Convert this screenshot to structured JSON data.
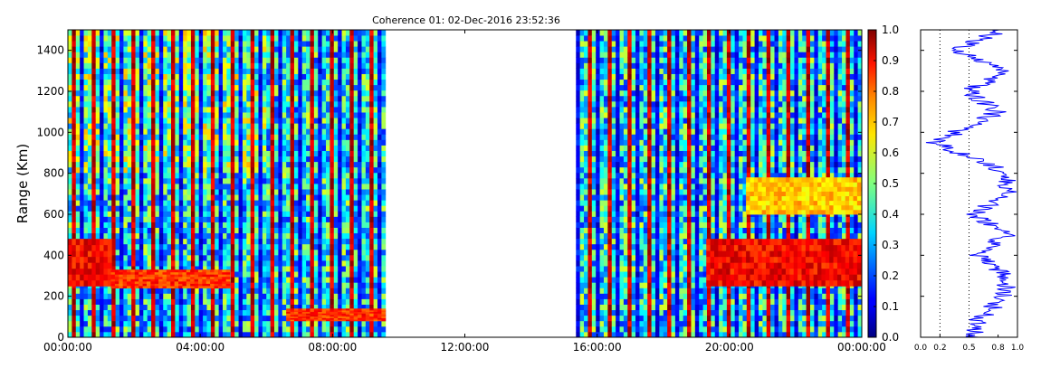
{
  "chart_data": [
    {
      "type": "heatmap",
      "title": "Coherence 01: 02-Dec-2016 23:52:36",
      "xlabel": "",
      "ylabel": "Range (Km)",
      "x_ticks": [
        "00:00:00",
        "04:00:00",
        "08:00:00",
        "12:00:00",
        "16:00:00",
        "20:00:00",
        "00:00:00"
      ],
      "xlim_hours": [
        0,
        24
      ],
      "y_ticks": [
        0,
        200,
        400,
        600,
        800,
        1000,
        1200,
        1400
      ],
      "ylim": [
        0,
        1500
      ],
      "data_gaps_hours": [
        [
          9.6,
          15.3
        ]
      ],
      "bands": [
        {
          "name": "",
          "start_hours": 0.0,
          "end_hours": 1.3,
          "range_km": [
            250,
            480
          ],
          "value": 0.95
        },
        {
          "name": "",
          "start_hours": 1.3,
          "end_hours": 4.8,
          "range_km": [
            240,
            330
          ],
          "value": 0.9
        },
        {
          "name": "",
          "start_hours": 6.6,
          "end_hours": 9.6,
          "range_km": [
            80,
            140
          ],
          "value": 0.9
        },
        {
          "name": "",
          "start_hours": 19.3,
          "end_hours": 24.0,
          "range_km": [
            250,
            480
          ],
          "value": 0.95
        },
        {
          "name": "",
          "start_hours": 20.5,
          "end_hours": 24.0,
          "range_km": [
            600,
            780
          ],
          "value": 0.75
        }
      ],
      "colormap": "jet",
      "colors": {
        "low": "#00007f",
        "mid": "#7fff7f",
        "high": "#7f0000"
      }
    },
    {
      "type": "colorbar",
      "ticks": [
        0.0,
        0.1,
        0.2,
        0.3,
        0.4,
        0.5,
        0.6,
        0.7,
        0.8,
        0.9,
        1.0
      ],
      "tick_labels": [
        "0.0",
        "0.1",
        "0.2",
        "0.3",
        "0.4",
        "0.5",
        "0.6",
        "0.7",
        "0.8",
        "0.9",
        "1.0"
      ],
      "range": [
        0,
        1
      ]
    },
    {
      "type": "line",
      "x_ticks": [
        0.0,
        0.2,
        0.5,
        0.8,
        1.0
      ],
      "x_tick_labels": [
        "0.0",
        "0.2",
        "0.5",
        "0.8",
        "1.0"
      ],
      "xlim": [
        0,
        1
      ],
      "ylim": [
        0,
        1500
      ],
      "reference_lines": [
        0.2,
        0.5
      ],
      "series_color": "#0000ff",
      "profile_points": [
        {
          "range_km": 0,
          "value": 0.55
        },
        {
          "range_km": 100,
          "value": 0.62
        },
        {
          "range_km": 200,
          "value": 0.88
        },
        {
          "range_km": 300,
          "value": 0.86
        },
        {
          "range_km": 400,
          "value": 0.6
        },
        {
          "range_km": 500,
          "value": 0.88
        },
        {
          "range_km": 600,
          "value": 0.55
        },
        {
          "range_km": 700,
          "value": 0.88
        },
        {
          "range_km": 800,
          "value": 0.9
        },
        {
          "range_km": 950,
          "value": 0.15
        },
        {
          "range_km": 1100,
          "value": 0.8
        },
        {
          "range_km": 1200,
          "value": 0.5
        },
        {
          "range_km": 1300,
          "value": 0.88
        },
        {
          "range_km": 1400,
          "value": 0.38
        },
        {
          "range_km": 1500,
          "value": 0.85
        }
      ]
    }
  ]
}
